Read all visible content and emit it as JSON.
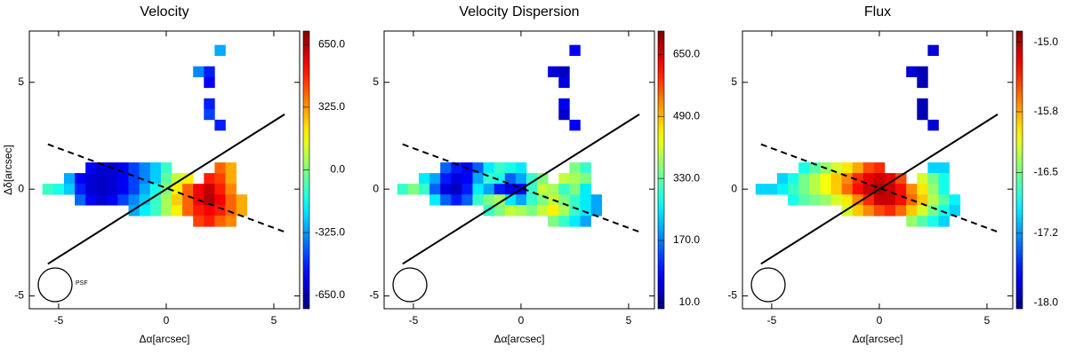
{
  "chart_data": [
    {
      "type": "heatmap",
      "title": "Velocity",
      "xlabel": "Δα[arcsec]",
      "ylabel": "Δδ[arcsec]",
      "annotation": "PSF",
      "colormap": "jet",
      "xlim": [
        -6.36,
        6.2
      ],
      "ylim": [
        -5.6,
        7.4
      ],
      "xticks": [
        -5,
        0,
        5
      ],
      "yticks": [
        -5,
        0,
        5
      ],
      "clim": [
        -720,
        720
      ],
      "cticks": [
        {
          "value": -650,
          "label": "-650.0"
        },
        {
          "value": -325,
          "label": "-325.0"
        },
        {
          "value": 0,
          "label": "0.0"
        },
        {
          "value": 325,
          "label": "325.0"
        },
        {
          "value": 650,
          "label": "650.0"
        }
      ],
      "x": [
        -3.5,
        -3,
        -2.5,
        -2,
        -1.5,
        -1,
        -0.5,
        0,
        2.5,
        3,
        -4.5,
        -4,
        -3.5,
        -3,
        -2.5,
        -2,
        -1.5,
        -1,
        -0.5,
        0,
        0.5,
        1,
        2,
        2.5,
        3,
        -5.5,
        -5,
        -4.5,
        -4,
        -3.5,
        -3,
        -2.5,
        -2,
        -1.5,
        -1,
        -0.5,
        0,
        0.5,
        1,
        1.5,
        2,
        2.5,
        3,
        -4,
        -3.5,
        -3,
        -2.5,
        -2,
        -1.5,
        -1,
        -0.5,
        0,
        0.5,
        1,
        1.5,
        2,
        2.5,
        3,
        3.5,
        -1.5,
        -1,
        -0.5,
        0,
        0.5,
        1,
        1.5,
        2,
        2.5,
        3,
        3.5,
        1.5,
        2,
        2.5,
        3,
        2.5,
        1.5,
        2,
        2,
        2,
        2,
        2.5
      ],
      "y": [
        1,
        1,
        1,
        1,
        1,
        1,
        1,
        1,
        1,
        1,
        0.5,
        0.5,
        0.5,
        0.5,
        0.5,
        0.5,
        0.5,
        0.5,
        0.5,
        0.5,
        0.5,
        0.5,
        0.5,
        0.5,
        0.5,
        0,
        0,
        0,
        0,
        0,
        0,
        0,
        0,
        0,
        0,
        0,
        0,
        0,
        0,
        0,
        0,
        0,
        0,
        -0.5,
        -0.5,
        -0.5,
        -0.5,
        -0.5,
        -0.5,
        -0.5,
        -0.5,
        -0.5,
        -0.5,
        -0.5,
        -0.5,
        -0.5,
        -0.5,
        -0.5,
        -0.5,
        -1,
        -1,
        -1,
        -1,
        -1,
        -1,
        -1,
        -1,
        -1,
        -1,
        -1,
        -1.5,
        -1.5,
        -1.5,
        -1.5,
        6.5,
        5.5,
        5.5,
        5,
        4,
        3.5,
        3
      ],
      "values": [
        -550,
        -600,
        -600,
        -550,
        -450,
        -350,
        -250,
        -100,
        400,
        300,
        -300,
        -550,
        -600,
        -620,
        -600,
        -550,
        -450,
        -350,
        -250,
        -50,
        100,
        200,
        500,
        450,
        300,
        -100,
        -150,
        -250,
        -500,
        -600,
        -620,
        -600,
        -550,
        -450,
        -300,
        -150,
        0,
        200,
        400,
        550,
        620,
        500,
        350,
        -400,
        -550,
        -600,
        -550,
        -450,
        -350,
        -250,
        -100,
        50,
        250,
        400,
        550,
        650,
        550,
        400,
        300,
        -300,
        -200,
        -100,
        50,
        200,
        400,
        500,
        550,
        500,
        400,
        300,
        450,
        500,
        400,
        350,
        -300,
        -350,
        -500,
        -550,
        -500,
        -450,
        -500
      ],
      "lines": [
        {
          "style": "solid",
          "x": [
            -5.5,
            5.5
          ],
          "y": [
            -3.5,
            3.5
          ]
        },
        {
          "style": "dashed",
          "x": [
            -5.5,
            5.5
          ],
          "y": [
            2.1,
            -2
          ]
        }
      ]
    },
    {
      "type": "heatmap",
      "title": "Velocity Dispersion",
      "xlabel": "Δα[arcsec]",
      "colormap": "jet",
      "xlim": [
        -6.36,
        6.2
      ],
      "ylim": [
        -5.6,
        7.4
      ],
      "xticks": [
        -5,
        0,
        5
      ],
      "yticks": [
        -5,
        0,
        5
      ],
      "clim": [
        -6,
        710
      ],
      "cticks": [
        {
          "value": 10,
          "label": "10.0"
        },
        {
          "value": 170,
          "label": "170.0"
        },
        {
          "value": 330,
          "label": "330.0"
        },
        {
          "value": 490,
          "label": "490.0"
        },
        {
          "value": 650,
          "label": "650.0"
        }
      ],
      "x": [
        -3.5,
        -3,
        -2.5,
        -2,
        -1.5,
        -1,
        -0.5,
        0,
        2.5,
        3,
        -4.5,
        -4,
        -3.5,
        -3,
        -2.5,
        -2,
        -1.5,
        -1,
        -0.5,
        0,
        0.5,
        1,
        2,
        2.5,
        3,
        -5.5,
        -5,
        -4.5,
        -4,
        -3.5,
        -3,
        -2.5,
        -2,
        -1.5,
        -1,
        -0.5,
        0,
        0.5,
        1,
        1.5,
        2,
        2.5,
        3,
        -4,
        -3.5,
        -3,
        -2.5,
        -2,
        -1.5,
        -1,
        -0.5,
        0,
        0.5,
        1,
        1.5,
        2,
        2.5,
        3,
        3.5,
        -1.5,
        -1,
        -0.5,
        0,
        0.5,
        1,
        1.5,
        2,
        2.5,
        3,
        3.5,
        1.5,
        2,
        2.5,
        3,
        2.5,
        1.5,
        2,
        2,
        2,
        2,
        2.5
      ],
      "y": [
        1,
        1,
        1,
        1,
        1,
        1,
        1,
        1,
        1,
        1,
        0.5,
        0.5,
        0.5,
        0.5,
        0.5,
        0.5,
        0.5,
        0.5,
        0.5,
        0.5,
        0.5,
        0.5,
        0.5,
        0.5,
        0.5,
        0,
        0,
        0,
        0,
        0,
        0,
        0,
        0,
        0,
        0,
        0,
        0,
        0,
        0,
        0,
        0,
        0,
        0,
        -0.5,
        -0.5,
        -0.5,
        -0.5,
        -0.5,
        -0.5,
        -0.5,
        -0.5,
        -0.5,
        -0.5,
        -0.5,
        -0.5,
        -0.5,
        -0.5,
        -0.5,
        -0.5,
        -1,
        -1,
        -1,
        -1,
        -1,
        -1,
        -1,
        -1,
        -1,
        -1,
        -1,
        -1.5,
        -1.5,
        -1.5,
        -1.5,
        6.5,
        5.5,
        5.5,
        5,
        4,
        3.5,
        3
      ],
      "values": [
        150,
        100,
        80,
        150,
        250,
        300,
        280,
        250,
        350,
        300,
        250,
        200,
        100,
        60,
        80,
        200,
        300,
        280,
        150,
        200,
        300,
        350,
        400,
        380,
        350,
        300,
        350,
        300,
        150,
        60,
        40,
        100,
        250,
        200,
        100,
        60,
        80,
        300,
        400,
        380,
        300,
        350,
        250,
        250,
        150,
        100,
        150,
        300,
        350,
        380,
        250,
        200,
        300,
        350,
        400,
        350,
        300,
        250,
        200,
        300,
        350,
        400,
        380,
        350,
        400,
        450,
        380,
        300,
        250,
        200,
        350,
        300,
        250,
        200,
        80,
        60,
        40,
        60,
        70,
        50,
        80
      ],
      "lines": [
        {
          "style": "solid",
          "x": [
            -5.5,
            5.5
          ],
          "y": [
            -3.5,
            3.5
          ]
        },
        {
          "style": "dashed",
          "x": [
            -5.5,
            5.5
          ],
          "y": [
            2.1,
            -2
          ]
        }
      ]
    },
    {
      "type": "heatmap",
      "title": "Flux",
      "xlabel": "Δα[arcsec]",
      "colormap": "jet",
      "xlim": [
        -6.36,
        6.2
      ],
      "ylim": [
        -5.6,
        7.4
      ],
      "xticks": [
        -5,
        0,
        5
      ],
      "yticks": [
        -5,
        0,
        5
      ],
      "clim": [
        -18.07,
        -14.87
      ],
      "cticks": [
        {
          "value": -18,
          "label": "-18.0"
        },
        {
          "value": -17.2,
          "label": "-17.2"
        },
        {
          "value": -16.5,
          "label": "-16.5"
        },
        {
          "value": -15.8,
          "label": "-15.8"
        },
        {
          "value": -15,
          "label": "-15.0"
        }
      ],
      "x": [
        -3.5,
        -3,
        -2.5,
        -2,
        -1.5,
        -1,
        -0.5,
        0,
        2.5,
        3,
        -4.5,
        -4,
        -3.5,
        -3,
        -2.5,
        -2,
        -1.5,
        -1,
        -0.5,
        0,
        0.5,
        1,
        2,
        2.5,
        3,
        -5.5,
        -5,
        -4.5,
        -4,
        -3.5,
        -3,
        -2.5,
        -2,
        -1.5,
        -1,
        -0.5,
        0,
        0.5,
        1,
        1.5,
        2,
        2.5,
        3,
        -4,
        -3.5,
        -3,
        -2.5,
        -2,
        -1.5,
        -1,
        -0.5,
        0,
        0.5,
        1,
        1.5,
        2,
        2.5,
        3,
        3.5,
        -1.5,
        -1,
        -0.5,
        0,
        0.5,
        1,
        1.5,
        2,
        2.5,
        3,
        3.5,
        1.5,
        2,
        2.5,
        3,
        2.5,
        1.5,
        2,
        2,
        2,
        2,
        2.5
      ],
      "y": [
        1,
        1,
        1,
        1,
        1,
        1,
        1,
        1,
        1,
        1,
        0.5,
        0.5,
        0.5,
        0.5,
        0.5,
        0.5,
        0.5,
        0.5,
        0.5,
        0.5,
        0.5,
        0.5,
        0.5,
        0.5,
        0.5,
        0,
        0,
        0,
        0,
        0,
        0,
        0,
        0,
        0,
        0,
        0,
        0,
        0,
        0,
        0,
        0,
        0,
        0,
        -0.5,
        -0.5,
        -0.5,
        -0.5,
        -0.5,
        -0.5,
        -0.5,
        -0.5,
        -0.5,
        -0.5,
        -0.5,
        -0.5,
        -0.5,
        -0.5,
        -0.5,
        -0.5,
        -1,
        -1,
        -1,
        -1,
        -1,
        -1,
        -1,
        -1,
        -1,
        -1,
        -1,
        -1.5,
        -1.5,
        -1.5,
        -1.5,
        6.5,
        5.5,
        5.5,
        5,
        4,
        3.5,
        3
      ],
      "values": [
        -16.8,
        -16.6,
        -16.4,
        -16.2,
        -16.0,
        -15.8,
        -15.5,
        -15.4,
        -17.0,
        -17.0,
        -17.0,
        -16.8,
        -16.5,
        -16.3,
        -16.1,
        -15.9,
        -15.7,
        -15.4,
        -15.2,
        -15.1,
        -15.2,
        -15.5,
        -16.2,
        -16.5,
        -16.8,
        -17.0,
        -17.0,
        -16.9,
        -16.7,
        -16.5,
        -16.3,
        -16.1,
        -15.9,
        -15.6,
        -15.3,
        -15.1,
        -15.0,
        -15.1,
        -15.3,
        -15.7,
        -16.0,
        -16.4,
        -16.8,
        -16.8,
        -16.6,
        -16.5,
        -16.4,
        -16.2,
        -16.0,
        -15.7,
        -15.4,
        -15.1,
        -15.1,
        -15.3,
        -15.6,
        -15.9,
        -16.3,
        -16.6,
        -16.9,
        -16.2,
        -15.9,
        -15.7,
        -15.5,
        -15.4,
        -15.6,
        -15.9,
        -16.2,
        -16.5,
        -16.8,
        -17.0,
        -16.4,
        -16.6,
        -16.8,
        -17.0,
        -17.8,
        -17.8,
        -17.9,
        -17.9,
        -17.9,
        -17.9,
        -17.8
      ],
      "lines": [
        {
          "style": "solid",
          "x": [
            -5.5,
            5.5
          ],
          "y": [
            -3.5,
            3.5
          ]
        },
        {
          "style": "dashed",
          "x": [
            -5.5,
            5.5
          ],
          "y": [
            2.1,
            -2
          ]
        }
      ]
    }
  ]
}
